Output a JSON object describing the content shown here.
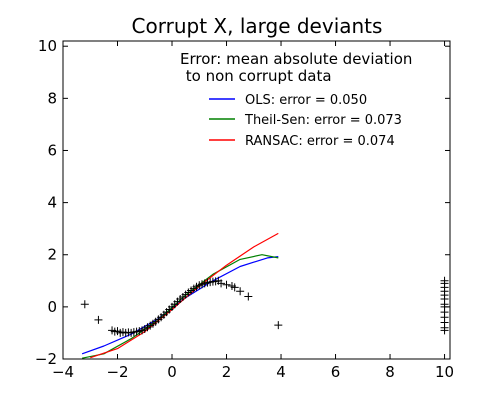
{
  "chart_data": {
    "type": "line",
    "title": "Corrupt X, large deviants",
    "xlabel": "",
    "ylabel": "",
    "xlim": [
      -4,
      10.2
    ],
    "ylim": [
      -2,
      10.2
    ],
    "xticks": [
      -4,
      -2,
      0,
      2,
      4,
      6,
      8,
      10
    ],
    "yticks": [
      -2,
      0,
      2,
      4,
      6,
      8,
      10
    ],
    "xtick_labels": [
      "−4",
      "−2",
      "0",
      "2",
      "4",
      "6",
      "8",
      "10"
    ],
    "ytick_labels": [
      "−2",
      "0",
      "2",
      "4",
      "6",
      "8",
      "10"
    ],
    "grid": false,
    "legend": {
      "placement": "top-right",
      "title_lines": [
        "Error: mean absolute deviation",
        " to non corrupt data"
      ],
      "entries": [
        {
          "label": "OLS: error = 0.050",
          "color": "#0000ff"
        },
        {
          "label": "Theil-Sen: error = 0.073",
          "color": "#008000"
        },
        {
          "label": "RANSAC: error = 0.074",
          "color": "#ff0000"
        }
      ]
    },
    "series": [
      {
        "name": "OLS: error = 0.050",
        "kind": "line",
        "color": "#0000ff",
        "x": [
          -3.3,
          -2.5,
          -1.5,
          -0.5,
          0,
          0.5,
          1.5,
          2.5,
          3.5,
          3.9
        ],
        "y": [
          -1.8,
          -1.5,
          -1.05,
          -0.45,
          -0.05,
          0.35,
          1.0,
          1.55,
          1.88,
          1.93
        ]
      },
      {
        "name": "Theil-Sen: error = 0.073",
        "kind": "line",
        "color": "#008000",
        "x": [
          -3.3,
          -2.5,
          -1.5,
          -0.5,
          0,
          0.5,
          1.5,
          2.5,
          3.3,
          3.9
        ],
        "y": [
          -1.97,
          -1.8,
          -1.22,
          -0.5,
          -0.02,
          0.45,
          1.25,
          1.82,
          2.0,
          1.88
        ]
      },
      {
        "name": "RANSAC: error = 0.074",
        "kind": "line",
        "color": "#ff0000",
        "x": [
          -3.0,
          -2.0,
          -1.0,
          0,
          0.5,
          1.0,
          2.0,
          3.0,
          3.9
        ],
        "y": [
          -1.95,
          -1.6,
          -0.95,
          -0.1,
          0.35,
          0.8,
          1.6,
          2.3,
          2.82
        ]
      },
      {
        "kind": "scatter",
        "marker": "+",
        "color": "#000000",
        "x": [
          -2.2,
          -2.1,
          -2.0,
          -1.9,
          -1.8,
          -1.7,
          -1.6,
          -1.5,
          -1.4,
          -1.3,
          -1.2,
          -1.1,
          -1.0,
          -0.9,
          -0.8,
          -0.7,
          -0.6,
          -0.5,
          -0.4,
          -0.3,
          -0.2,
          -0.1,
          0.0,
          0.1,
          0.2,
          0.3,
          0.4,
          0.5,
          0.6,
          0.7,
          0.8,
          0.9,
          1.0,
          1.1,
          1.2,
          1.3,
          1.4,
          1.5,
          1.6,
          1.7,
          1.8,
          2.0,
          2.2,
          2.3,
          2.5,
          2.8,
          -3.2,
          -2.7,
          3.9,
          10.0,
          10.0,
          10.0,
          10.0,
          10.0,
          10.0,
          10.0,
          10.0,
          10.0,
          10.0,
          10.0,
          10.0,
          10.0
        ],
        "y": [
          -0.9,
          -0.95,
          -0.93,
          -1.0,
          -0.97,
          -1.0,
          -0.98,
          -1.0,
          -0.97,
          -0.95,
          -0.93,
          -0.9,
          -0.85,
          -0.78,
          -0.72,
          -0.65,
          -0.57,
          -0.48,
          -0.4,
          -0.3,
          -0.2,
          -0.1,
          0.0,
          0.1,
          0.2,
          0.3,
          0.38,
          0.47,
          0.55,
          0.63,
          0.7,
          0.77,
          0.83,
          0.87,
          0.9,
          0.93,
          0.95,
          0.97,
          0.98,
          1.0,
          0.9,
          0.85,
          0.8,
          0.75,
          0.6,
          0.4,
          0.1,
          -0.5,
          -0.7,
          -0.8,
          -0.6,
          -0.4,
          -0.2,
          0.0,
          0.1,
          0.3,
          0.45,
          0.6,
          0.75,
          0.9,
          1.0,
          -0.9
        ]
      }
    ]
  }
}
